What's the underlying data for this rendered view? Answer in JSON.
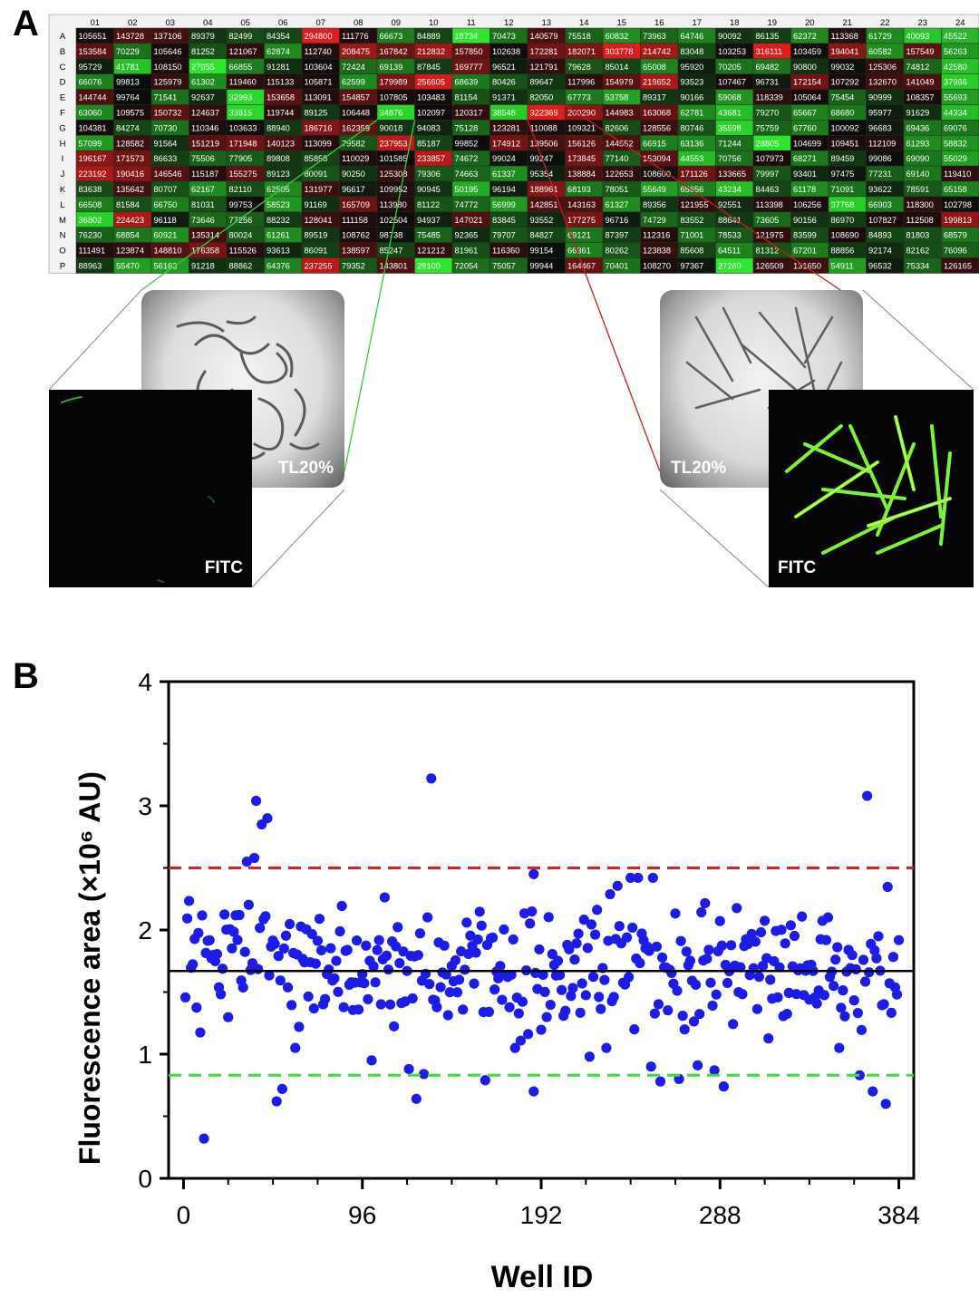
{
  "panel_a": {
    "letter": "A",
    "columns": [
      "01",
      "02",
      "03",
      "04",
      "05",
      "06",
      "07",
      "08",
      "09",
      "10",
      "11",
      "12",
      "13",
      "14",
      "15",
      "16",
      "17",
      "18",
      "19",
      "20",
      "21",
      "22",
      "23",
      "24"
    ],
    "rows": [
      "A",
      "B",
      "C",
      "D",
      "E",
      "F",
      "G",
      "H",
      "I",
      "J",
      "K",
      "L",
      "M",
      "N",
      "O",
      "P"
    ],
    "values": [
      [
        105651,
        143728,
        137106,
        89379,
        82499,
        84354,
        294800,
        111776,
        66673,
        84889,
        18734,
        70473,
        140579,
        75518,
        60832,
        73963,
        64746,
        90092,
        86135,
        62372,
        113368,
        61729,
        40093,
        45522
      ],
      [
        153584,
        70229,
        105646,
        81252,
        121067,
        62874,
        112740,
        208475,
        167842,
        212832,
        157850,
        102638,
        172281,
        182071,
        303778,
        214742,
        83048,
        103253,
        316111,
        103459,
        194041,
        60582,
        157549,
        56263
      ],
      [
        95729,
        41781,
        108150,
        27955,
        66855,
        91281,
        103604,
        72424,
        69139,
        87845,
        169777,
        96521,
        121791,
        79628,
        85014,
        65008,
        95920,
        70205,
        69482,
        90800,
        99032,
        125306,
        74812,
        42580
      ],
      [
        66076,
        99813,
        125979,
        61302,
        119460,
        115133,
        105871,
        62599,
        179989,
        256605,
        68639,
        80426,
        89647,
        117996,
        154979,
        219652,
        93523,
        107467,
        96731,
        172154,
        107292,
        132670,
        141049,
        37966
      ],
      [
        144744,
        99764,
        71541,
        92637,
        32993,
        153658,
        113091,
        154857,
        107805,
        103483,
        81154,
        91371,
        82050,
        67773,
        53758,
        89317,
        90166,
        59068,
        118339,
        105064,
        75454,
        90999,
        108357,
        55693
      ],
      [
        63060,
        109575,
        150732,
        124637,
        33815,
        119744,
        89125,
        106448,
        34876,
        102097,
        120317,
        38548,
        322369,
        200290,
        144983,
        163068,
        62781,
        43681,
        79270,
        65667,
        68680,
        95977,
        91629,
        44334
      ],
      [
        104381,
        84274,
        70730,
        110346,
        103633,
        88940,
        186716,
        162359,
        90018,
        94083,
        75128,
        123281,
        110088,
        109321,
        82606,
        128556,
        80746,
        35598,
        75759,
        67760,
        100092,
        96683,
        69436,
        69076
      ],
      [
        57099,
        128582,
        91564,
        151219,
        171948,
        140123,
        113099,
        79582,
        237953,
        85187,
        99852,
        174912,
        139506,
        156126,
        144552,
        66915,
        63136,
        71244,
        28805,
        104699,
        109451,
        112109,
        61293,
        58832
      ],
      [
        196167,
        171573,
        86633,
        75506,
        77905,
        89808,
        85858,
        110029,
        101585,
        233857,
        74672,
        99024,
        99247,
        173845,
        77140,
        153094,
        44553,
        70756,
        107973,
        68271,
        89459,
        99086,
        69090,
        55029
      ],
      [
        223192,
        190416,
        146546,
        115187,
        155275,
        89123,
        80091,
        90250,
        125308,
        79306,
        74663,
        61337,
        95354,
        138884,
        122653,
        108600,
        171126,
        133665,
        79997,
        93401,
        97475,
        77231,
        69140,
        119410
      ],
      [
        83638,
        135642,
        80707,
        62167,
        82110,
        62505,
        131977,
        96617,
        109952,
        90945,
        50195,
        96194,
        188961,
        68193,
        78051,
        55649,
        65656,
        43234,
        84463,
        61178,
        71091,
        93622,
        78591,
        65158
      ],
      [
        66508,
        81584,
        66750,
        81031,
        99753,
        58523,
        91169,
        165709,
        113980,
        81122,
        74772,
        56999,
        142851,
        143163,
        61327,
        89356,
        121955,
        92551,
        113398,
        106256,
        37768,
        66903,
        118300,
        102798
      ],
      [
        36802,
        224423,
        96118,
        73646,
        77256,
        88232,
        128041,
        111158,
        102504,
        94937,
        147021,
        83845,
        93552,
        177275,
        96716,
        74729,
        83552,
        88641,
        73605,
        90156,
        86970,
        107827,
        112508,
        199813
      ],
      [
        76230,
        68854,
        60921,
        135314,
        80024,
        61261,
        89519,
        108762,
        98738,
        75485,
        92365,
        79707,
        84827,
        69121,
        87397,
        112316,
        71001,
        78533,
        121975,
        83599,
        108690,
        84893,
        81803,
        68579
      ],
      [
        111491,
        123874,
        148810,
        176358,
        115526,
        93613,
        86091,
        138597,
        85247,
        121212,
        81961,
        116360,
        99154,
        66361,
        80262,
        123838,
        85608,
        64511,
        81312,
        67201,
        88856,
        92174,
        82162,
        76096
      ],
      [
        88963,
        55470,
        56163,
        91218,
        88862,
        64376,
        237255,
        79352,
        143801,
        28100,
        72054,
        75057,
        99944,
        164467,
        70401,
        108270,
        97367,
        27260,
        126509,
        131650,
        54911,
        96532,
        75334,
        126165
      ]
    ],
    "color_low": "#2ee62e",
    "color_mid": "#0b0b0b",
    "color_high": "#e01c1c",
    "images": [
      {
        "name": "low-tl",
        "label": "TL20%"
      },
      {
        "name": "low-fitc",
        "label": "FITC"
      },
      {
        "name": "high-tl",
        "label": "TL20%"
      },
      {
        "name": "high-fitc",
        "label": "FITC"
      }
    ],
    "links": [
      {
        "well_row": 5,
        "well_col": 8,
        "color": "#3ccc3c"
      },
      {
        "well_row": 5,
        "well_col": 12,
        "color": "#c81e1e"
      }
    ]
  },
  "chart_data": {
    "letter": "B",
    "type": "scatter",
    "xlabel": "Well ID",
    "ylabel": "Fluorescence area (×10⁶ AU)",
    "xlim": [
      -8,
      392
    ],
    "ylim": [
      0,
      4
    ],
    "xticks": [
      0,
      96,
      192,
      288,
      384
    ],
    "yticks": [
      0,
      1,
      2,
      3,
      4
    ],
    "point_color": "#1c1ce6",
    "seed": 20240517,
    "outliers": [
      {
        "x": 11,
        "y": 0.32
      },
      {
        "x": 34,
        "y": 2.55
      },
      {
        "x": 38,
        "y": 2.58
      },
      {
        "x": 39,
        "y": 3.04
      },
      {
        "x": 42,
        "y": 2.85
      },
      {
        "x": 45,
        "y": 2.9
      },
      {
        "x": 50,
        "y": 0.62
      },
      {
        "x": 53,
        "y": 0.72
      },
      {
        "x": 101,
        "y": 0.95
      },
      {
        "x": 121,
        "y": 0.88
      },
      {
        "x": 125,
        "y": 0.64
      },
      {
        "x": 129,
        "y": 0.84
      },
      {
        "x": 133,
        "y": 3.22
      },
      {
        "x": 162,
        "y": 0.79
      },
      {
        "x": 188,
        "y": 2.45
      },
      {
        "x": 188,
        "y": 0.7
      },
      {
        "x": 218,
        "y": 0.98
      },
      {
        "x": 251,
        "y": 0.9
      },
      {
        "x": 256,
        "y": 0.78
      },
      {
        "x": 266,
        "y": 0.8
      },
      {
        "x": 276,
        "y": 0.91
      },
      {
        "x": 285,
        "y": 0.87
      },
      {
        "x": 290,
        "y": 0.74
      },
      {
        "x": 367,
        "y": 3.08
      },
      {
        "x": 363,
        "y": 0.83
      },
      {
        "x": 370,
        "y": 0.7
      },
      {
        "x": 377,
        "y": 0.6
      }
    ],
    "point_count": 384,
    "center_value": 1.68,
    "spread": 0.26,
    "mean_line": {
      "y": 1.67,
      "color": "#000000"
    },
    "upper_threshold": {
      "y": 2.5,
      "color": "#e01c1c"
    },
    "lower_threshold": {
      "y": 0.83,
      "color": "#2ee62e"
    }
  }
}
